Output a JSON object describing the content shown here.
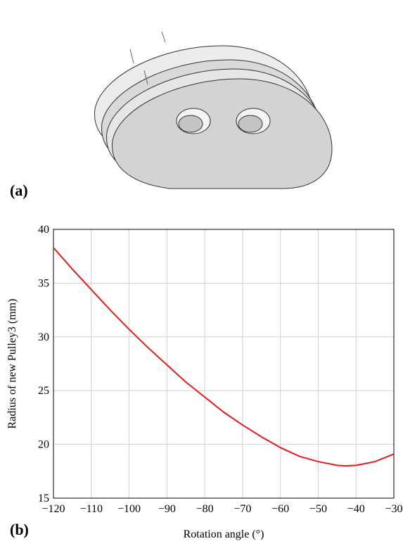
{
  "chart_data": {
    "type": "line",
    "panel_labels": [
      "(a)",
      "(b)"
    ],
    "xlabel": "Rotation angle (°)",
    "ylabel": "Radius of new Pulley3 (mm)",
    "x": [
      -120,
      -115,
      -110,
      -105,
      -100,
      -95,
      -90,
      -85,
      -80,
      -75,
      -70,
      -65,
      -60,
      -55,
      -50,
      -45,
      -43,
      -40,
      -35,
      -30
    ],
    "values": [
      38.3,
      36.3,
      34.4,
      32.5,
      30.7,
      29.0,
      27.4,
      25.8,
      24.4,
      23.0,
      21.8,
      20.7,
      19.7,
      18.9,
      18.4,
      18.05,
      18.0,
      18.05,
      18.4,
      19.1
    ],
    "color": "#e41a1c",
    "xlim": [
      -120,
      -30
    ],
    "xticks": [
      {
        "value": -120,
        "label": "−120"
      },
      {
        "value": -110,
        "label": "−110"
      },
      {
        "value": -100,
        "label": "−100"
      },
      {
        "value": -90,
        "label": "−90"
      },
      {
        "value": -80,
        "label": "−80"
      },
      {
        "value": -70,
        "label": "−70"
      },
      {
        "value": -60,
        "label": "−60"
      },
      {
        "value": -50,
        "label": "−50"
      },
      {
        "value": -40,
        "label": "−40"
      },
      {
        "value": -30,
        "label": "−30"
      }
    ],
    "ylim": [
      15,
      40
    ],
    "yticks": [
      15,
      20,
      25,
      30,
      35,
      40
    ],
    "grid": true
  }
}
